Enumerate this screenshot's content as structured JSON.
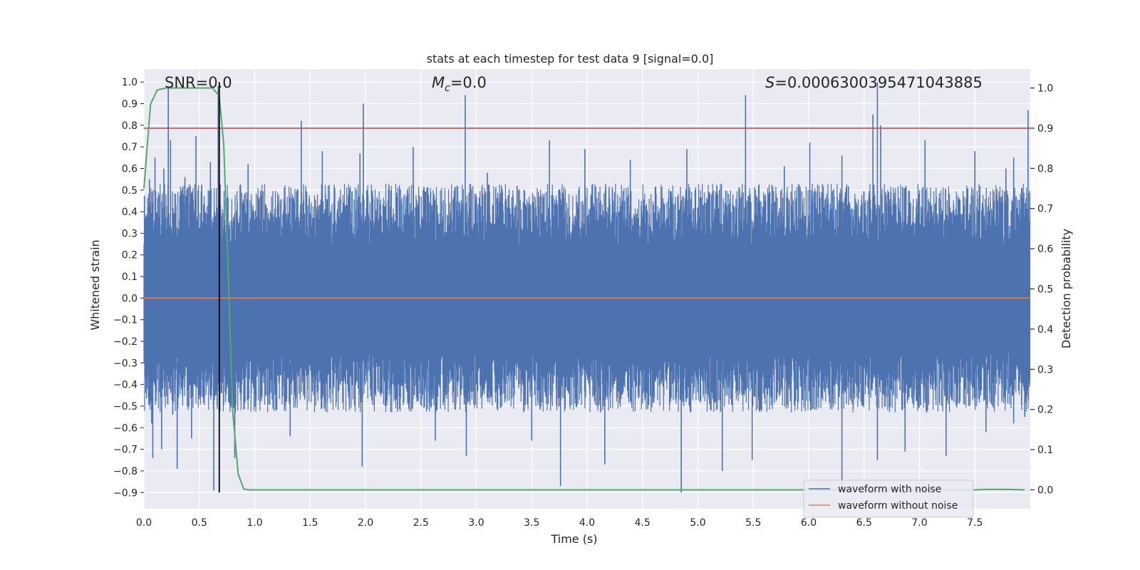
{
  "chart_data": {
    "type": "line",
    "title": "stats at each timestep for test data 9 [signal=0.0]",
    "xlabel": "Time (s)",
    "ylabel": "Whitened strain",
    "y2label": "Detection probability",
    "xlim": [
      0.0,
      8.0
    ],
    "ylim": [
      -0.975,
      1.06
    ],
    "y2lim": [
      -0.047,
      1.047
    ],
    "x_ticks": [
      "0.0",
      "0.5",
      "1.0",
      "1.5",
      "2.0",
      "2.5",
      "3.0",
      "3.5",
      "4.0",
      "4.5",
      "5.0",
      "5.5",
      "6.0",
      "6.5",
      "7.0",
      "7.5"
    ],
    "y_ticks": [
      "1.0",
      "0.9",
      "0.8",
      "0.7",
      "0.6",
      "0.5",
      "0.4",
      "0.3",
      "0.2",
      "0.1",
      "0.0",
      "−0.1",
      "−0.2",
      "−0.3",
      "−0.4",
      "−0.5",
      "−0.6",
      "−0.7",
      "−0.8",
      "−0.9"
    ],
    "y2_ticks": [
      "1.0",
      "0.9",
      "0.8",
      "0.7",
      "0.6",
      "0.5",
      "0.4",
      "0.3",
      "0.2",
      "0.1",
      "0.0"
    ],
    "annotations": {
      "snr_text": "SNR=0.0",
      "mc_symbol": "M",
      "mc_subscript": "c",
      "mc_value": "=0.0",
      "s_symbol": "S",
      "s_value": "=0.0006300395471043885"
    },
    "colors": {
      "background": "#eaeaf2",
      "grid": "#ffffff",
      "noise": "#4c72b0",
      "clean": "#dd8452",
      "probability": "#55a868",
      "threshold": "#c44e52",
      "marker": "#000000"
    },
    "series": [
      {
        "name": "waveform with noise",
        "axis": "left",
        "description_range": [
          -0.9,
          1.0
        ],
        "envelope_hint": "dense noise mostly within ±0.35 with spikes to about 1.0 (at 6.62 s) and down to about −0.9 (at 4.85 s)"
      },
      {
        "name": "waveform without noise",
        "axis": "left",
        "constant": 0.0
      },
      {
        "name": "detection probability",
        "axis": "right",
        "x": [
          0.0,
          0.06,
          0.12,
          0.2,
          0.3,
          0.5,
          0.62,
          0.68,
          0.72,
          0.76,
          0.8,
          0.85,
          0.9,
          0.95,
          1.0,
          2.0,
          4.0,
          6.0,
          7.0,
          7.5,
          7.6,
          7.8,
          7.95
        ],
        "values": [
          0.75,
          0.96,
          0.995,
          1.0,
          1.0,
          1.0,
          1.0,
          0.98,
          0.86,
          0.55,
          0.2,
          0.04,
          0.002,
          0.0,
          0.0,
          0.0,
          0.0,
          0.0,
          0.0,
          0.0,
          0.001,
          0.001,
          0.0
        ]
      }
    ],
    "threshold_line": {
      "axis": "right",
      "value": 0.9
    },
    "marker_line": {
      "x": 0.68,
      "y_from": -0.9,
      "y_to": 1.0
    },
    "legend": {
      "position": "lower-right",
      "entries": [
        "waveform with noise",
        "waveform without noise"
      ]
    },
    "noise_spikes": {
      "positive": [
        {
          "x": 0.05,
          "y": 0.55
        },
        {
          "x": 0.1,
          "y": 0.65
        },
        {
          "x": 0.18,
          "y": 0.6
        },
        {
          "x": 0.22,
          "y": 0.97
        },
        {
          "x": 0.24,
          "y": 0.73
        },
        {
          "x": 0.37,
          "y": 0.56
        },
        {
          "x": 0.47,
          "y": 0.75
        },
        {
          "x": 0.6,
          "y": 0.63
        },
        {
          "x": 0.67,
          "y": 0.98
        },
        {
          "x": 0.94,
          "y": 0.62
        },
        {
          "x": 1.42,
          "y": 0.82
        },
        {
          "x": 1.61,
          "y": 0.68
        },
        {
          "x": 1.95,
          "y": 0.67
        },
        {
          "x": 1.98,
          "y": 0.9
        },
        {
          "x": 2.43,
          "y": 0.7
        },
        {
          "x": 2.9,
          "y": 0.94
        },
        {
          "x": 3.1,
          "y": 0.58
        },
        {
          "x": 3.66,
          "y": 0.73
        },
        {
          "x": 3.98,
          "y": 0.69
        },
        {
          "x": 4.39,
          "y": 0.64
        },
        {
          "x": 4.9,
          "y": 0.69
        },
        {
          "x": 5.43,
          "y": 0.94
        },
        {
          "x": 5.78,
          "y": 0.61
        },
        {
          "x": 6.01,
          "y": 0.72
        },
        {
          "x": 6.3,
          "y": 0.66
        },
        {
          "x": 6.58,
          "y": 0.85
        },
        {
          "x": 6.62,
          "y": 1.0
        },
        {
          "x": 6.65,
          "y": 0.8
        },
        {
          "x": 7.05,
          "y": 0.73
        },
        {
          "x": 7.5,
          "y": 0.68
        },
        {
          "x": 7.78,
          "y": 0.6
        },
        {
          "x": 7.85,
          "y": 0.65
        },
        {
          "x": 7.98,
          "y": 0.87
        }
      ],
      "negative": [
        {
          "x": 0.07,
          "y": -0.58
        },
        {
          "x": 0.08,
          "y": -0.74
        },
        {
          "x": 0.16,
          "y": -0.7
        },
        {
          "x": 0.26,
          "y": -0.54
        },
        {
          "x": 0.3,
          "y": -0.79
        },
        {
          "x": 0.43,
          "y": -0.65
        },
        {
          "x": 0.63,
          "y": -0.89
        },
        {
          "x": 0.82,
          "y": -0.74
        },
        {
          "x": 1.32,
          "y": -0.64
        },
        {
          "x": 1.97,
          "y": -0.78
        },
        {
          "x": 2.63,
          "y": -0.66
        },
        {
          "x": 2.91,
          "y": -0.73
        },
        {
          "x": 3.5,
          "y": -0.66
        },
        {
          "x": 3.76,
          "y": -0.87
        },
        {
          "x": 4.16,
          "y": -0.77
        },
        {
          "x": 4.85,
          "y": -0.9
        },
        {
          "x": 5.22,
          "y": -0.8
        },
        {
          "x": 5.49,
          "y": -0.75
        },
        {
          "x": 6.3,
          "y": -0.88
        },
        {
          "x": 6.62,
          "y": -0.75
        },
        {
          "x": 6.87,
          "y": -0.71
        },
        {
          "x": 7.24,
          "y": -0.73
        },
        {
          "x": 7.6,
          "y": -0.62
        },
        {
          "x": 7.85,
          "y": -0.58
        },
        {
          "x": 7.95,
          "y": -0.55
        }
      ]
    }
  }
}
